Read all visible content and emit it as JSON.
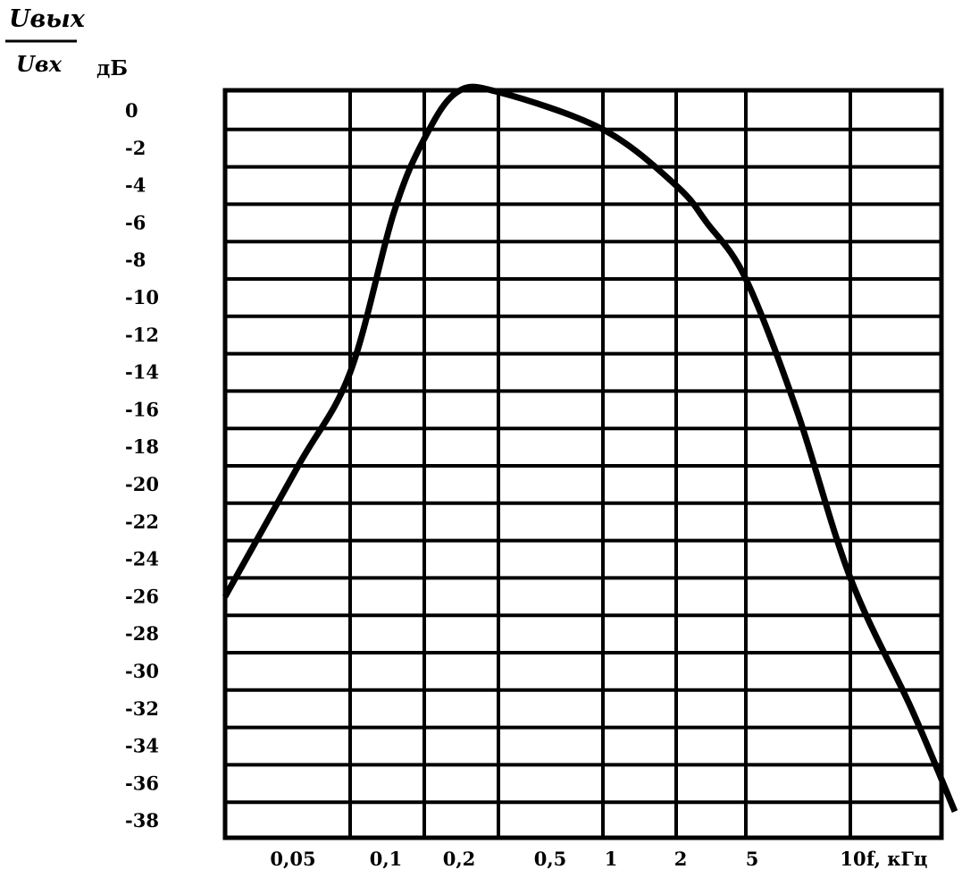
{
  "chart_data": {
    "type": "line",
    "ylabel_numerator": "Uвых",
    "ylabel_denominator": "Uвх",
    "ylabel_unit": "дБ",
    "xlabel": "f, кГц",
    "x_scale": "log",
    "x_ticks": [
      {
        "value": 0.05,
        "label": "0,05"
      },
      {
        "value": 0.1,
        "label": "0,1"
      },
      {
        "value": 0.2,
        "label": "0,2"
      },
      {
        "value": 0.5,
        "label": "0,5"
      },
      {
        "value": 1,
        "label": "1"
      },
      {
        "value": 2,
        "label": "2"
      },
      {
        "value": 5,
        "label": "5"
      },
      {
        "value": 10,
        "label": "10"
      }
    ],
    "y_ticks": [
      "0",
      "-2",
      "-4",
      "-6",
      "-8",
      "-10",
      "-12",
      "-14",
      "-16",
      "-18",
      "-20",
      "-22",
      "-24",
      "-26",
      "-28",
      "-30",
      "-32",
      "-34",
      "-36",
      "-38"
    ],
    "ylim": [
      -39,
      0
    ],
    "grid": true,
    "series": [
      {
        "x": [
          0.05,
          0.075,
          0.1,
          0.15,
          0.2,
          0.3,
          0.5,
          1,
          2,
          3,
          5,
          7,
          10,
          15,
          20
        ],
        "values": [
          -27,
          -20,
          -15,
          -6.5,
          -2.5,
          0,
          0,
          -2,
          -5,
          -7,
          -10,
          -17,
          -26,
          -33,
          -38.5
        ]
      }
    ]
  }
}
